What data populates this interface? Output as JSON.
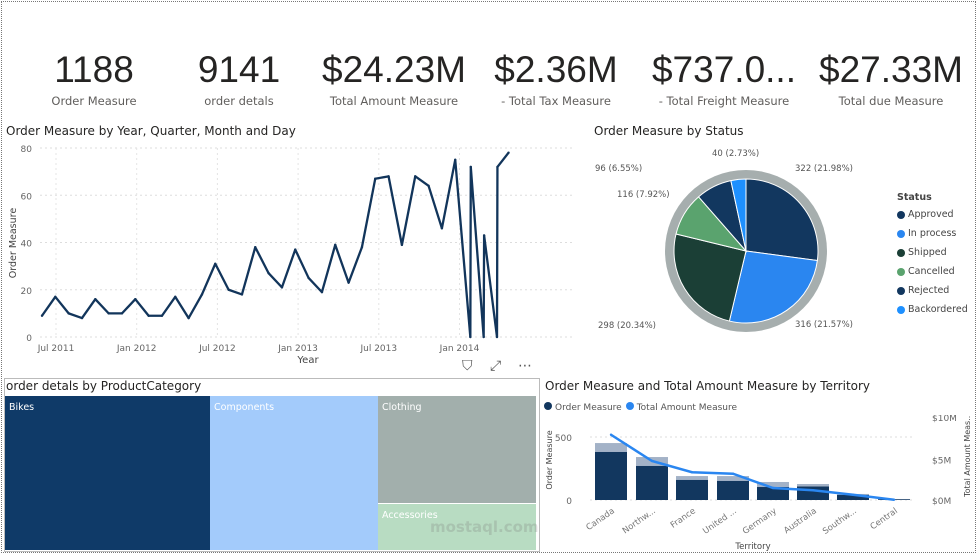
{
  "kpis": [
    {
      "value": "1188",
      "label": "Order Measure"
    },
    {
      "value": "9141",
      "label": "order detals"
    },
    {
      "value": "$24.23M",
      "label": "Total Amount Measure"
    },
    {
      "value": "$2.36M",
      "label": "- Total Tax Measure"
    },
    {
      "value": "$737.0...",
      "label": "- Total Freight Measure"
    },
    {
      "value": "$27.33M",
      "label": "Total due Measure"
    }
  ],
  "chart_data": [
    {
      "type": "line",
      "title": "Order Measure by Year, Quarter, Month and Day",
      "xlabel": "Year",
      "ylabel": "Order Measure",
      "ylim": [
        0,
        80
      ],
      "yticks": [
        "0",
        "20",
        "40",
        "60",
        "80"
      ],
      "xticks": [
        "Jul 2011",
        "Jan 2012",
        "Jul 2012",
        "Jan 2013",
        "Jul 2013",
        "Jan 2014"
      ],
      "grid": true,
      "color": "#12355b",
      "x": [
        "2011-06-01",
        "2011-07-01",
        "2011-08-01",
        "2011-09-01",
        "2011-10-01",
        "2011-11-01",
        "2011-12-01",
        "2012-01-01",
        "2012-02-01",
        "2012-03-01",
        "2012-04-01",
        "2012-05-01",
        "2012-06-01",
        "2012-07-01",
        "2012-08-01",
        "2012-09-01",
        "2012-10-01",
        "2012-11-01",
        "2012-12-01",
        "2013-01-01",
        "2013-02-01",
        "2013-03-01",
        "2013-04-01",
        "2013-05-01",
        "2013-06-01",
        "2013-07-01",
        "2013-08-01",
        "2013-09-01",
        "2013-10-01",
        "2013-11-01",
        "2013-12-01",
        "2014-01-01",
        "2014-02-05",
        "2014-02-06",
        "2014-03-05",
        "2014-03-06",
        "2014-04-05",
        "2014-04-06",
        "2014-05-01"
      ],
      "y": [
        9,
        17,
        10,
        8,
        16,
        10,
        10,
        16,
        9,
        9,
        17,
        8,
        18,
        31,
        20,
        18,
        38,
        27,
        21,
        37,
        25,
        19,
        39,
        23,
        38,
        67,
        68,
        39,
        68,
        64,
        46,
        75,
        0,
        72,
        0,
        43,
        0,
        72,
        78
      ]
    },
    {
      "type": "pie",
      "title": "Order Measure by Status",
      "legend_title": "Status",
      "legend": "right",
      "slices": [
        {
          "name": "Approved",
          "value": 322,
          "label": "322 (21.98%)",
          "color": "#12375f"
        },
        {
          "name": "In process",
          "value": 316,
          "label": "316 (21.57%)",
          "color": "#2a86f0"
        },
        {
          "name": "Shipped",
          "value": 298,
          "label": "298 (20.34%)",
          "color": "#1b3f36"
        },
        {
          "name": "Cancelled",
          "value": 116,
          "label": "116 (7.92%)",
          "color": "#5aa36e"
        },
        {
          "name": "Rejected",
          "value": 96,
          "label": "96 (6.55%)",
          "color": "#12375f"
        },
        {
          "name": "Backordered",
          "value": 40,
          "label": "40 (2.73%)",
          "color": "#1e90ff"
        }
      ]
    },
    {
      "type": "treemap",
      "title": "order detals by ProductCategory",
      "categories": [
        "Bikes",
        "Components",
        "Clothing",
        "Accessories"
      ],
      "colors": [
        "#0f3a68",
        "#a3cbfb",
        "#a2afac",
        "#b8dcc2"
      ]
    },
    {
      "type": "bar",
      "title": "Order Measure and Total Amount Measure by Territory",
      "xlabel": "Territory",
      "ylabel": "Order Measure",
      "y2label": "Total Amount Meas...",
      "legend": "top-left",
      "categories": [
        "Canada",
        "Northw...",
        "France",
        "United ...",
        "Germany",
        "Australia",
        "Southw...",
        "Central"
      ],
      "yticks": [
        "0",
        "500"
      ],
      "y2ticks": [
        "$0M",
        "$5M",
        "$10M"
      ],
      "series": [
        {
          "name": "Order Measure",
          "type": "bar",
          "color": "#12375f",
          "values": [
            381,
            270,
            159,
            151,
            103,
            107,
            40,
            5
          ],
          "background_values": [
            452,
            341,
            190,
            190,
            143,
            127,
            48,
            8
          ]
        },
        {
          "name": "Total Amount Measure",
          "type": "line",
          "color": "#2a86f0",
          "values": [
            8.7,
            5.2,
            3.7,
            3.5,
            1.6,
            1.3,
            0.7,
            0.04
          ]
        }
      ]
    }
  ],
  "watermark": "mostaql.com"
}
